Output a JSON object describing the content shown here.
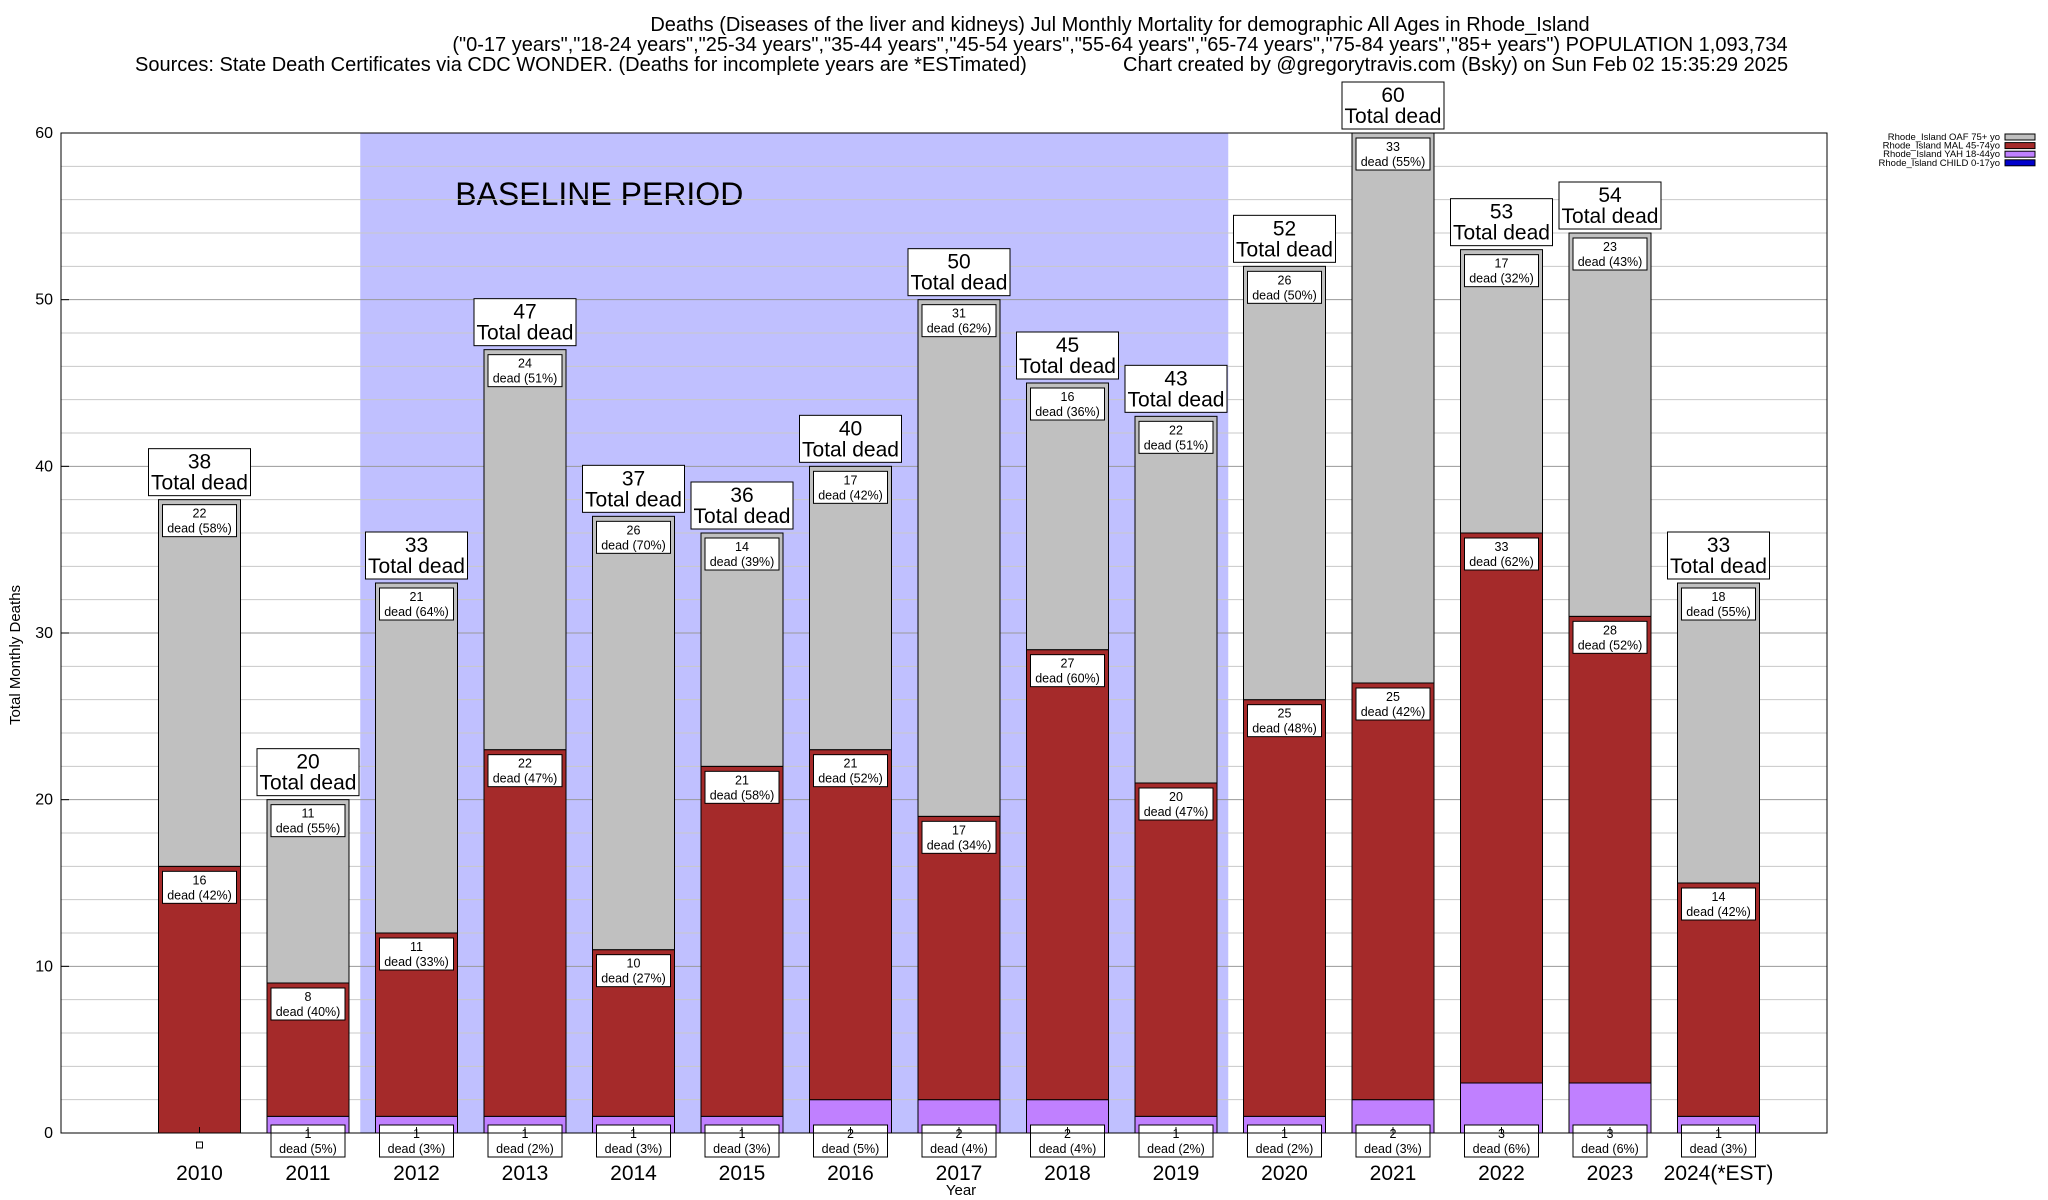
{
  "header": {
    "line1": "Deaths (Diseases of the liver and kidneys) Jul Monthly Mortality for demographic All Ages in Rhode_Island",
    "line2": "(\"0-17 years\",\"18-24 years\",\"25-34 years\",\"35-44 years\",\"45-54 years\",\"55-64 years\",\"65-74 years\",\"75-84 years\",\"85+ years\") POPULATION 1,093,734",
    "line3_left": "Sources: State Death Certificates via CDC WONDER. (Deaths for incomplete years are *ESTimated)",
    "line3_right": "Chart created by @gregorytravis.com (Bsky) on Sun Feb 02 15:35:29 2025"
  },
  "chart_data": {
    "type": "bar",
    "stacked": true,
    "categories": [
      "2010",
      "2011",
      "2012",
      "2013",
      "2014",
      "2015",
      "2016",
      "2017",
      "2018",
      "2019",
      "2020",
      "2021",
      "2022",
      "2023",
      "2024(*EST)"
    ],
    "series": [
      {
        "name": "Rhode_Island CHILD 0-17yo",
        "color": "#0000cc",
        "values": [
          0,
          0,
          0,
          0,
          0,
          0,
          0,
          0,
          0,
          0,
          0,
          0,
          0,
          0,
          0
        ],
        "labels": [
          "",
          "",
          "",
          "",
          "",
          "",
          "",
          "",
          "",
          "",
          "",
          "",
          "",
          "",
          ""
        ]
      },
      {
        "name": "Rhode_Island YAH 18-44yo",
        "color": "#c080ff",
        "values": [
          0,
          1,
          1,
          1,
          1,
          1,
          2,
          2,
          2,
          1,
          1,
          2,
          3,
          3,
          1
        ],
        "labels": [
          "",
          "(5%)",
          "(3%)",
          "(2%)",
          "(3%)",
          "(3%)",
          "(5%)",
          "(4%)",
          "(4%)",
          "(2%)",
          "(2%)",
          "(3%)",
          "(6%)",
          "(6%)",
          "(3%)"
        ]
      },
      {
        "name": "Rhode_Island MAL 45-74yo",
        "color": "#a52a2a",
        "values": [
          16,
          8,
          11,
          22,
          10,
          21,
          21,
          17,
          27,
          20,
          25,
          25,
          33,
          28,
          14
        ],
        "labels": [
          "(42%)",
          "(40%)",
          "(33%)",
          "(47%)",
          "(27%)",
          "(58%)",
          "(52%)",
          "(34%)",
          "(60%)",
          "(47%)",
          "(48%)",
          "(42%)",
          "(62%)",
          "(52%)",
          "(42%)"
        ]
      },
      {
        "name": "Rhode_Island OAF 75+ yo",
        "color": "#c0c0c0",
        "values": [
          22,
          11,
          21,
          24,
          26,
          14,
          17,
          31,
          16,
          22,
          26,
          33,
          17,
          23,
          18
        ],
        "labels": [
          "(58%)",
          "(55%)",
          "(64%)",
          "(51%)",
          "(70%)",
          "(39%)",
          "(42%)",
          "(62%)",
          "(36%)",
          "(51%)",
          "(50%)",
          "(55%)",
          "(32%)",
          "(43%)",
          "(55%)"
        ]
      }
    ],
    "totals": [
      38,
      20,
      33,
      47,
      37,
      36,
      40,
      50,
      45,
      43,
      52,
      60,
      53,
      54,
      33
    ],
    "total_suffix": "Total dead",
    "dead_word": "dead",
    "xlabel": "Year",
    "ylabel": "Total Monthly Deaths",
    "ylim": [
      0,
      60
    ],
    "yticks": [
      0,
      10,
      20,
      30,
      40,
      50,
      60
    ],
    "grid": true,
    "legend_placement": "top-right, outside",
    "baseline": {
      "label": "BASELINE PERIOD",
      "start": "2012",
      "end": "2019",
      "color": "#c0c0ff"
    }
  }
}
